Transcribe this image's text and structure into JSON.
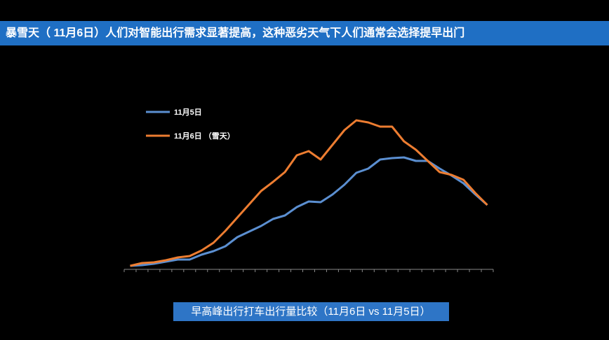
{
  "chart_data": {
    "type": "line",
    "title": "暴雪天（ 11月6日）人们对智能出行需求显著提高，这种恶劣天气下人们通常会选择提早出门",
    "caption": "早高峰出行打车出行量比较（11月6日 vs 11月5日）",
    "categories": [
      null,
      null,
      null,
      null,
      null,
      null,
      null,
      null,
      null,
      null,
      null,
      null,
      null,
      null,
      null,
      null,
      null,
      null,
      null,
      null,
      null,
      null,
      null,
      null,
      null,
      null,
      null,
      null,
      null,
      null,
      null
    ],
    "series": [
      {
        "name": "11月5日",
        "color": "#5b8fd1",
        "values": [
          5,
          6,
          8,
          11,
          14,
          14,
          21,
          26,
          33,
          46,
          54,
          62,
          72,
          77,
          89,
          97,
          96,
          107,
          121,
          138,
          144,
          157,
          159,
          160,
          155,
          155,
          144,
          134,
          123,
          107,
          92
        ]
      },
      {
        "name": "11月6日 （雪天）",
        "color": "#ed7d31",
        "values": [
          5,
          9,
          10,
          13,
          17,
          19,
          27,
          38,
          55,
          74,
          93,
          112,
          125,
          139,
          163,
          169,
          157,
          178,
          199,
          213,
          210,
          204,
          204,
          183,
          171,
          155,
          139,
          135,
          128,
          109,
          92
        ]
      }
    ],
    "ylim": [
      0,
      230
    ],
    "legend": "upper left"
  }
}
